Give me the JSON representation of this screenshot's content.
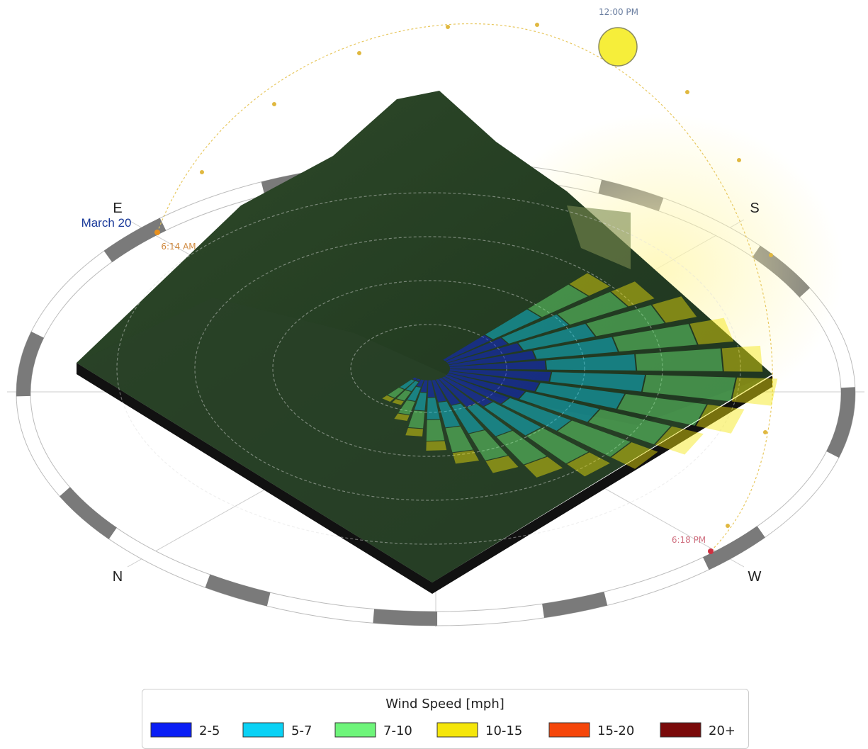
{
  "sun_path": {
    "noon": "12:00 PM",
    "date": "March 20",
    "sunrise": "6:14 AM",
    "sunset": "6:18 PM"
  },
  "compass": {
    "east": "E",
    "south": "S",
    "north": "N",
    "west": "W"
  },
  "legend": {
    "title": "Wind Speed [mph]",
    "items": [
      {
        "label": "2-5",
        "color": "#0a1ef5"
      },
      {
        "label": "5-7",
        "color": "#0ad2f5"
      },
      {
        "label": "7-10",
        "color": "#6ef57a"
      },
      {
        "label": "10-15",
        "color": "#f5e60a"
      },
      {
        "label": "15-20",
        "color": "#f5460a"
      },
      {
        "label": "20+",
        "color": "#7a0a0a"
      }
    ]
  }
}
